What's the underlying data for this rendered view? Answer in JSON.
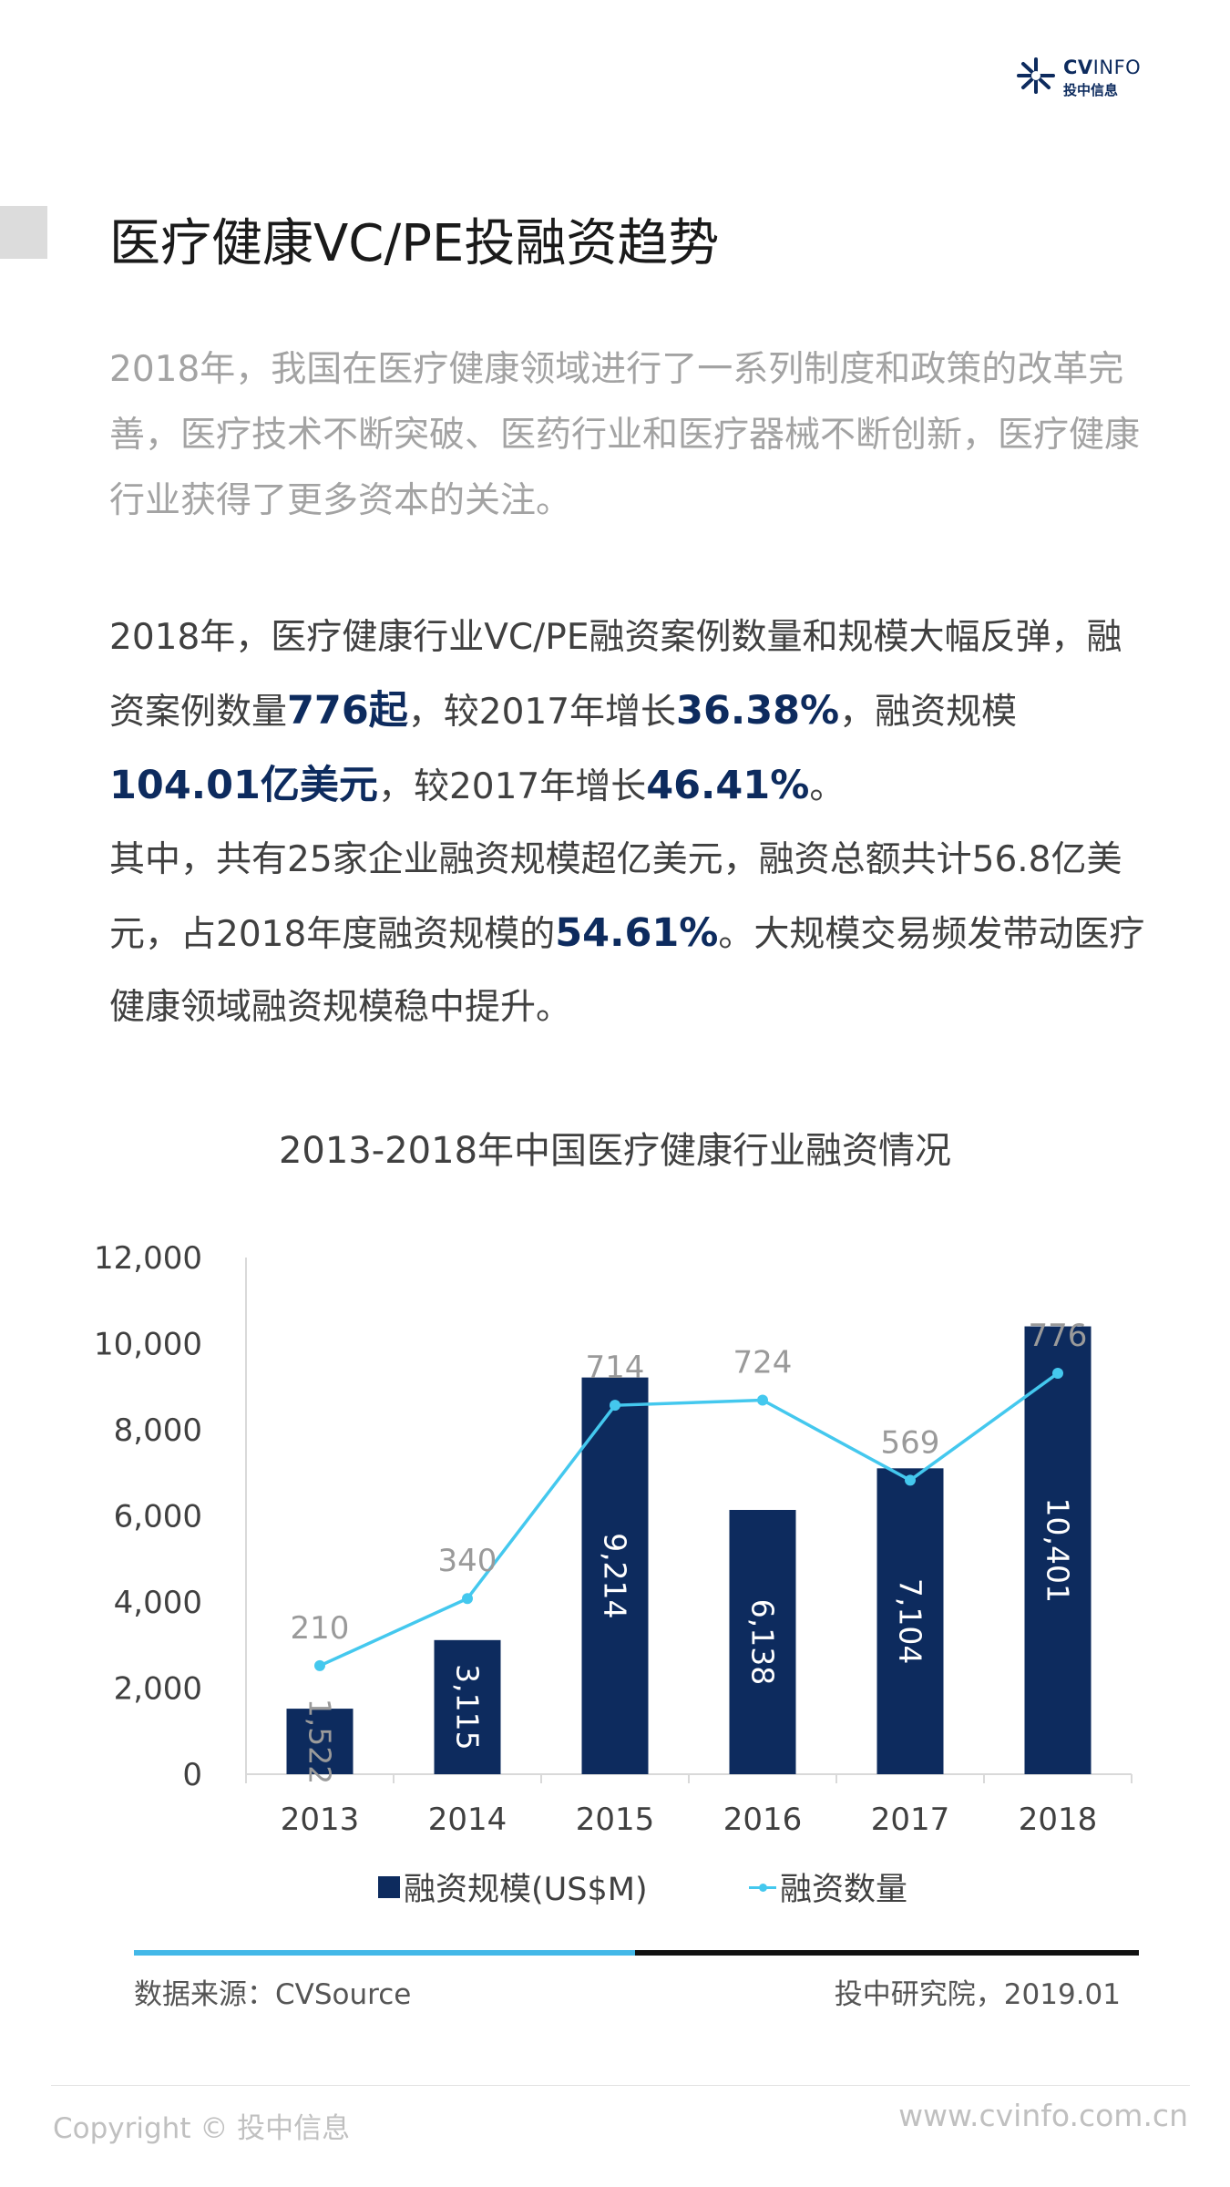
{
  "logo": {
    "text_bold": "CV",
    "text_light": "INFO",
    "text_cn": "投中信息"
  },
  "title": "医疗健康VC/PE投融资趋势",
  "intro": "2018年，我国在医疗健康领域进行了一系列制度和政策的改革完善，医疗技术不断突破、医药行业和医疗器械不断创新，医疗健康行业获得了更多资本的关注。",
  "summary": {
    "s1": "2018年，医疗健康行业VC/PE融资案例数量和规模大幅反弹，融资案例数量",
    "h1": "776起",
    "s2": "，较2017年增长",
    "h2": "36.38%",
    "s3": "，融资规模",
    "h3": "104.01亿美元",
    "s4": "，较2017年增长",
    "h4": "46.41%",
    "s5": "。",
    "p2a": "其中，共有25家企业融资规模超亿美元，融资总额共计56.8亿美元，占2018年度融资规模的",
    "p2h": "54.61%",
    "p2b": "。大规模交易频发带动医疗健康领域融资规模稳中提升。"
  },
  "chart_data": {
    "type": "bar",
    "title": "2013-2018年中国医疗健康行业融资情况",
    "categories": [
      "2013",
      "2014",
      "2015",
      "2016",
      "2017",
      "2018"
    ],
    "series": [
      {
        "name": "融资规模(US$M)",
        "type": "bar",
        "values": [
          1522,
          3115,
          9214,
          6138,
          7104,
          10401
        ],
        "labels": [
          "1,522",
          "3,115",
          "9,214",
          "6,138",
          "7,104",
          "10,401"
        ],
        "color": "#0d2b5e"
      },
      {
        "name": "融资数量",
        "type": "line",
        "values": [
          210,
          340,
          714,
          724,
          569,
          776
        ],
        "labels": [
          "210",
          "340",
          "714",
          "724",
          "569",
          "776"
        ],
        "color": "#44c8ee"
      }
    ],
    "ylim": [
      0,
      12000
    ],
    "yticks": [
      0,
      2000,
      4000,
      6000,
      8000,
      10000,
      12000
    ],
    "ytick_labels": [
      "0",
      "2,000",
      "4,000",
      "6,000",
      "8,000",
      "10,000",
      "12,000"
    ],
    "y2lim": [
      0,
      1000
    ],
    "legend_position": "bottom",
    "grid": false
  },
  "footer": {
    "source": "数据来源：CVSource",
    "org": "投中研究院，2019.01",
    "copyright": "Copyright © 投中信息",
    "site": "www.cvinfo.com.cn"
  },
  "colors": {
    "brand_navy": "#0d2b5e",
    "accent_cyan": "#44c8ee",
    "rule_blue": "#43b8e8"
  }
}
